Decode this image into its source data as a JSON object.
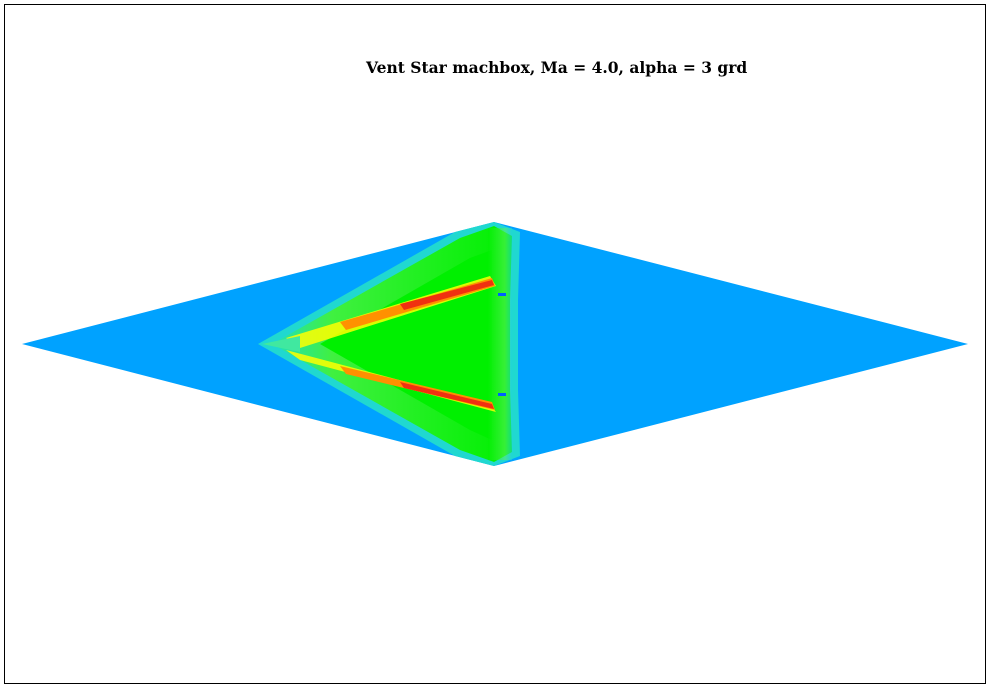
{
  "title": "Vent Star machbox, Ma = 4.0, alpha = 3 grd",
  "colors": {
    "background": "#ffffff",
    "frame": "#000000",
    "freestream": "#00a2ff",
    "wing_body": "#00f000",
    "mid_green": "#40f040",
    "yellow": "#ffff00",
    "orange": "#ff9000",
    "red": "#f03010",
    "cyan_fringe": "#20e0c0"
  }
}
